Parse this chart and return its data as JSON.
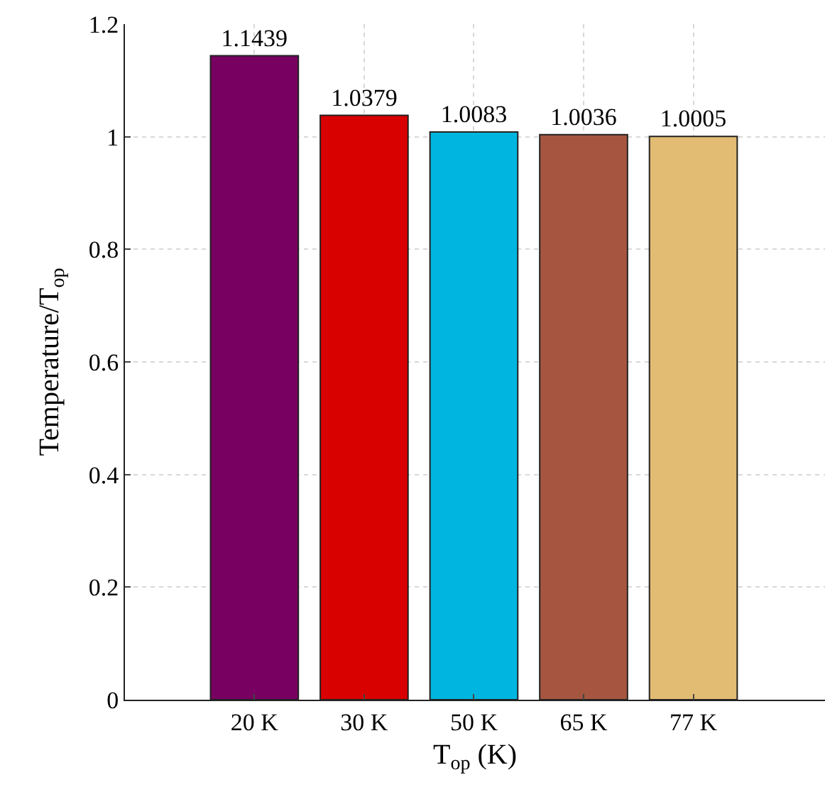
{
  "chart_data": {
    "type": "bar",
    "categories": [
      "20 K",
      "30 K",
      "50 K",
      "65 K",
      "77 K"
    ],
    "values": [
      1.1439,
      1.0379,
      1.0083,
      1.0036,
      1.0005
    ],
    "colors": [
      "#780060",
      "#d90000",
      "#00b6e0",
      "#a65640",
      "#e2bc73"
    ],
    "xlabel": "T$_{op}$ (K)",
    "ylabel": "Temperature/T$_{op}$",
    "ylim": [
      0,
      1.2
    ],
    "yticks": [
      0,
      0.2,
      0.4,
      0.6,
      0.8,
      1,
      1.2
    ],
    "grid": true,
    "data_labels": true
  }
}
